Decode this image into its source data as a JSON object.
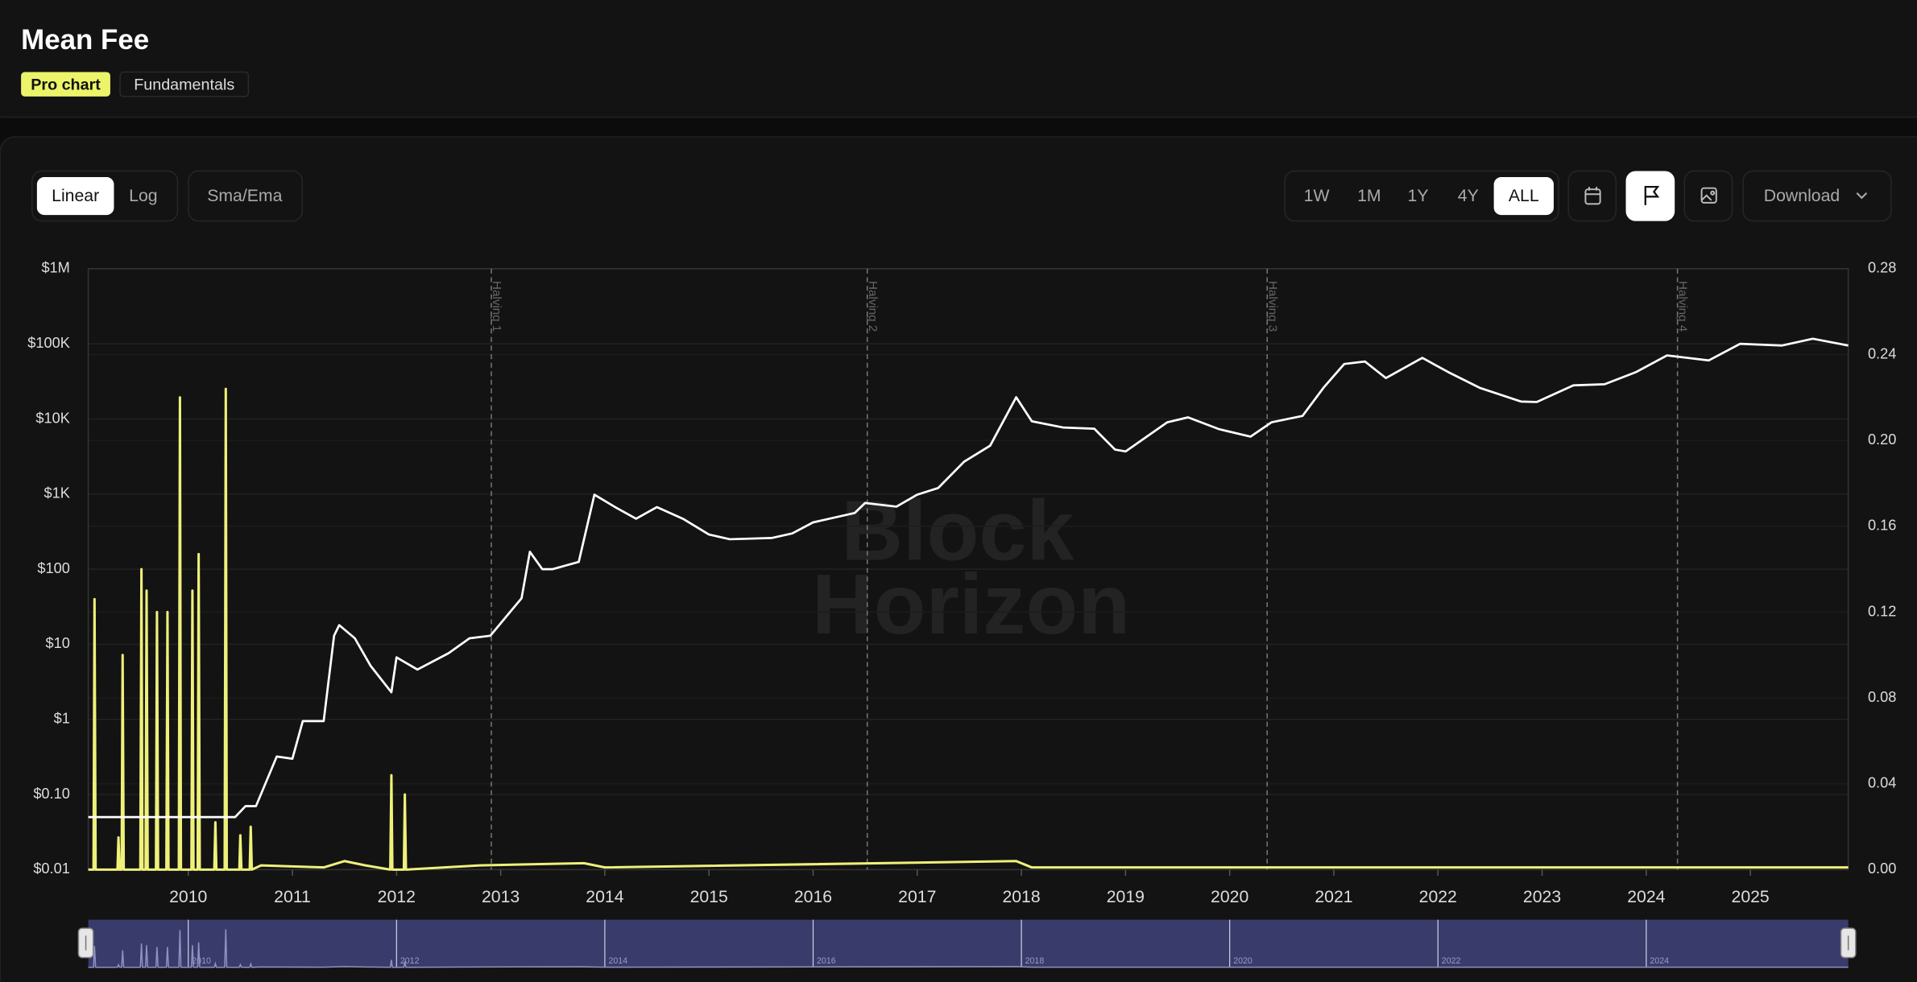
{
  "header": {
    "title": "Mean Fee",
    "tabs": [
      "Pro chart",
      "Fundamentals"
    ],
    "active_tab": 0
  },
  "toolbar": {
    "scales": [
      "Linear",
      "Log"
    ],
    "active_scale": 0,
    "indicator": "Sma/Ema",
    "ranges": [
      "1W",
      "1M",
      "1Y",
      "4Y",
      "ALL"
    ],
    "active_range": 4,
    "download": "Download"
  },
  "watermark": [
    "Block",
    "Horizon"
  ],
  "chart_data": {
    "type": "line",
    "ylog": true,
    "grid": true,
    "xlim": [
      2009.04,
      2025.94
    ],
    "xticks": [
      2010,
      2011,
      2012,
      2013,
      2014,
      2015,
      2016,
      2017,
      2018,
      2019,
      2020,
      2021,
      2022,
      2023,
      2024,
      2025
    ],
    "ylim": [
      0.01,
      1000000
    ],
    "yticks": [
      {
        "value": 0.01,
        "label": "$0.01"
      },
      {
        "value": 0.1,
        "label": "$0.10"
      },
      {
        "value": 1,
        "label": "$1"
      },
      {
        "value": 10,
        "label": "$10"
      },
      {
        "value": 100,
        "label": "$100"
      },
      {
        "value": 1000,
        "label": "$1K"
      },
      {
        "value": 10000,
        "label": "$10K"
      },
      {
        "value": 100000,
        "label": "$100K"
      },
      {
        "value": 1000000,
        "label": "$1M"
      }
    ],
    "y2lim": [
      0,
      0.28
    ],
    "y2ticks": [
      {
        "value": 0,
        "label": "0.00"
      },
      {
        "value": 0.04,
        "label": "0.04"
      },
      {
        "value": 0.08,
        "label": "0.08"
      },
      {
        "value": 0.12,
        "label": "0.12"
      },
      {
        "value": 0.16,
        "label": "0.16"
      },
      {
        "value": 0.2,
        "label": "0.20"
      },
      {
        "value": 0.24,
        "label": "0.24"
      },
      {
        "value": 0.28,
        "label": "0.28"
      }
    ],
    "series": [
      {
        "color": "#ffffff",
        "axis": "y",
        "x": [
          2009.04,
          2010.45,
          2010.55,
          2010.65,
          2010.85,
          2011.0,
          2011.1,
          2011.3,
          2011.4,
          2011.45,
          2011.6,
          2011.75,
          2011.95,
          2012.0,
          2012.2,
          2012.5,
          2012.7,
          2012.9,
          2013.2,
          2013.28,
          2013.4,
          2013.5,
          2013.75,
          2013.9,
          2014.1,
          2014.3,
          2014.5,
          2014.75,
          2015.0,
          2015.2,
          2015.6,
          2015.8,
          2016.0,
          2016.4,
          2016.5,
          2016.8,
          2017.0,
          2017.2,
          2017.45,
          2017.7,
          2017.95,
          2018.1,
          2018.4,
          2018.7,
          2018.9,
          2019.0,
          2019.4,
          2019.6,
          2019.9,
          2020.2,
          2020.4,
          2020.7,
          2020.9,
          2021.1,
          2021.3,
          2021.5,
          2021.85,
          2022.1,
          2022.4,
          2022.8,
          2022.95,
          2023.3,
          2023.6,
          2023.9,
          2024.2,
          2024.6,
          2024.9,
          2025.3,
          2025.6,
          2025.94
        ],
        "values": [
          0.05,
          0.05,
          0.07,
          0.07,
          0.32,
          0.3,
          0.95,
          0.95,
          13,
          18,
          12,
          5.2,
          2.3,
          6.7,
          4.6,
          7.6,
          12,
          13,
          41,
          170,
          100,
          100,
          125,
          980,
          670,
          470,
          670,
          470,
          290,
          250,
          260,
          300,
          420,
          560,
          760,
          680,
          980,
          1200,
          2700,
          4400,
          19500,
          9300,
          7700,
          7400,
          3900,
          3700,
          9000,
          10500,
          7300,
          5800,
          9000,
          11000,
          26000,
          54000,
          58000,
          35000,
          65000,
          42000,
          26000,
          17000,
          16800,
          28000,
          29000,
          42000,
          70000,
          60000,
          100000,
          95000,
          117000,
          95000
        ]
      },
      {
        "color": "#eef07a",
        "axis": "y2",
        "x": [
          2009.04,
          2009.09,
          2009.1,
          2009.11,
          2009.32,
          2009.33,
          2009.34,
          2009.36,
          2009.37,
          2009.38,
          2009.54,
          2009.55,
          2009.56,
          2009.59,
          2009.6,
          2009.61,
          2009.69,
          2009.7,
          2009.71,
          2009.79,
          2009.8,
          2009.81,
          2009.91,
          2009.92,
          2009.93,
          2010.03,
          2010.04,
          2010.05,
          2010.09,
          2010.1,
          2010.11,
          2010.25,
          2010.26,
          2010.27,
          2010.35,
          2010.36,
          2010.37,
          2010.49,
          2010.5,
          2010.51,
          2010.59,
          2010.6,
          2010.61,
          2010.7,
          2011.3,
          2011.5,
          2011.7,
          2011.94,
          2011.95,
          2011.96,
          2012.07,
          2012.08,
          2012.09,
          2012.8,
          2013.8,
          2014.0,
          2017.95,
          2018.1,
          2020.0,
          2025.94
        ],
        "values": [
          0,
          0,
          0.126,
          0,
          0,
          0.015,
          0,
          0,
          0.1,
          0,
          0,
          0.14,
          0,
          0,
          0.13,
          0,
          0,
          0.12,
          0,
          0,
          0.12,
          0,
          0,
          0.22,
          0,
          0,
          0.13,
          0,
          0,
          0.147,
          0,
          0,
          0.022,
          0,
          0,
          0.224,
          0,
          0,
          0.016,
          0,
          0,
          0.02,
          0,
          0.002,
          0.001,
          0.004,
          0.002,
          0,
          0.044,
          0,
          0,
          0.035,
          0,
          0.002,
          0.003,
          0.001,
          0.004,
          0.001,
          0.001,
          0.001
        ]
      }
    ],
    "annotations": [
      {
        "x": 2012.91,
        "label": "Halving 1"
      },
      {
        "x": 2016.52,
        "label": "Halving 2"
      },
      {
        "x": 2020.36,
        "label": "Halving 3"
      },
      {
        "x": 2024.3,
        "label": "Halving 4"
      }
    ],
    "navigator": {
      "xticks": [
        2010,
        2012,
        2014,
        2016,
        2018,
        2020,
        2022,
        2024
      ]
    }
  }
}
